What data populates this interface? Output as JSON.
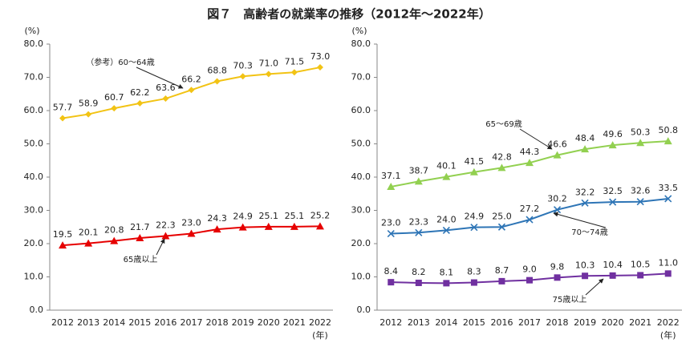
{
  "title": "図７　高齢者の就業率の推移（2012年～2022年）",
  "chart_data": [
    {
      "type": "line",
      "y_unit": "(%)",
      "x_unit": "(年)",
      "categories": [
        "2012",
        "2013",
        "2014",
        "2015",
        "2016",
        "2017",
        "2018",
        "2019",
        "2020",
        "2021",
        "2022"
      ],
      "ylim": [
        0,
        80
      ],
      "yticks": [
        {
          "value": 0,
          "label": "0.0"
        },
        {
          "value": 10,
          "label": "10.0"
        },
        {
          "value": 20,
          "label": "20.0"
        },
        {
          "value": 30,
          "label": "30.0"
        },
        {
          "value": 40,
          "label": "40.0"
        },
        {
          "value": 50,
          "label": "50.0"
        },
        {
          "value": 60,
          "label": "60.0"
        },
        {
          "value": 70,
          "label": "70.0"
        },
        {
          "value": 80,
          "label": "80.0"
        }
      ],
      "series": [
        {
          "name": "（参考）60～64歳",
          "color": "#f2c314",
          "marker": "diamond",
          "values": [
            57.7,
            58.9,
            60.7,
            62.2,
            63.6,
            66.2,
            68.8,
            70.3,
            71.0,
            71.5,
            73.0
          ],
          "value_labels": [
            "57.7",
            "58.9",
            "60.7",
            "62.2",
            "63.6",
            "66.2",
            "68.8",
            "70.3",
            "71.0",
            "71.5",
            "73.0"
          ]
        },
        {
          "name": "65歳以上",
          "color": "#e60000",
          "marker": "triangle",
          "values": [
            19.5,
            20.1,
            20.8,
            21.7,
            22.3,
            23.0,
            24.3,
            24.9,
            25.1,
            25.1,
            25.2
          ],
          "value_labels": [
            "19.5",
            "20.1",
            "20.8",
            "21.7",
            "22.3",
            "23.0",
            "24.3",
            "24.9",
            "25.1",
            "25.1",
            "25.2"
          ]
        }
      ]
    },
    {
      "type": "line",
      "y_unit": "(%)",
      "x_unit": "(年)",
      "categories": [
        "2012",
        "2013",
        "2014",
        "2015",
        "2016",
        "2017",
        "2018",
        "2019",
        "2020",
        "2021",
        "2022"
      ],
      "ylim": [
        0,
        80
      ],
      "yticks": [
        {
          "value": 0,
          "label": "0.0"
        },
        {
          "value": 10,
          "label": "10.0"
        },
        {
          "value": 20,
          "label": "20.0"
        },
        {
          "value": 30,
          "label": "30.0"
        },
        {
          "value": 40,
          "label": "40.0"
        },
        {
          "value": 50,
          "label": "50.0"
        },
        {
          "value": 60,
          "label": "60.0"
        },
        {
          "value": 70,
          "label": "70.0"
        },
        {
          "value": 80,
          "label": "80.0"
        }
      ],
      "series": [
        {
          "name": "65～69歳",
          "color": "#92d050",
          "marker": "triangle",
          "values": [
            37.1,
            38.7,
            40.1,
            41.5,
            42.8,
            44.3,
            46.6,
            48.4,
            49.6,
            50.3,
            50.8
          ],
          "value_labels": [
            "37.1",
            "38.7",
            "40.1",
            "41.5",
            "42.8",
            "44.3",
            "46.6",
            "48.4",
            "49.6",
            "50.3",
            "50.8"
          ]
        },
        {
          "name": "70～74歳",
          "color": "#2e75b6",
          "marker": "x",
          "values": [
            23.0,
            23.3,
            24.0,
            24.9,
            25.0,
            27.2,
            30.2,
            32.2,
            32.5,
            32.6,
            33.5
          ],
          "value_labels": [
            "23.0",
            "23.3",
            "24.0",
            "24.9",
            "25.0",
            "27.2",
            "30.2",
            "32.2",
            "32.5",
            "32.6",
            "33.5"
          ]
        },
        {
          "name": "75歳以上",
          "color": "#7030a0",
          "marker": "square",
          "values": [
            8.4,
            8.2,
            8.1,
            8.3,
            8.7,
            9.0,
            9.8,
            10.3,
            10.4,
            10.5,
            11.0
          ],
          "value_labels": [
            "8.4",
            "8.2",
            "8.1",
            "8.3",
            "8.7",
            "9.0",
            "9.8",
            "10.3",
            "10.4",
            "10.5",
            "11.0"
          ]
        }
      ]
    }
  ]
}
